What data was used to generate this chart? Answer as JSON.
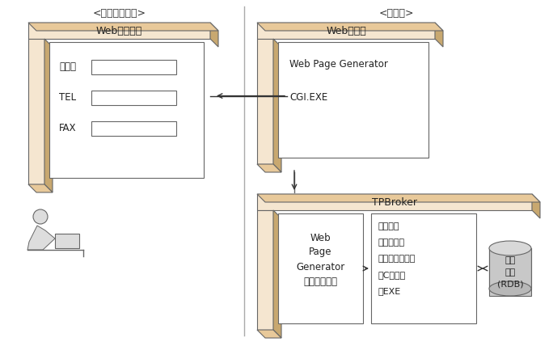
{
  "bg_color": "#ffffff",
  "tan_face": "#E8C99A",
  "tan_dark": "#C8A870",
  "tan_light": "#F5E6D0",
  "box_bg": "#ffffff",
  "box_border": "#666666",
  "text_color": "#222222",
  "divider_color": "#aaaaaa",
  "client_label": "<クライアント>",
  "server_label": "<サーバ>",
  "web_browser_label": "Webブラウザ",
  "web_server_label": "Webサーバ",
  "tpbroker_label": "TPBroker",
  "form_labels": [
    "会社名",
    "TEL",
    "FAX"
  ],
  "web_server_content_1": "Web Page Generator",
  "web_server_content_2": "CGI.EXE",
  "wpg_object_lines": [
    "Web",
    "Page",
    "Generator",
    "オブジェクト"
  ],
  "company_info_lines": [
    "会社情報",
    "検索・登録",
    "・テンプレート",
    "・Cソース",
    "・EXE"
  ],
  "db_lines": [
    "会社",
    "情報",
    "(RDB)"
  ]
}
